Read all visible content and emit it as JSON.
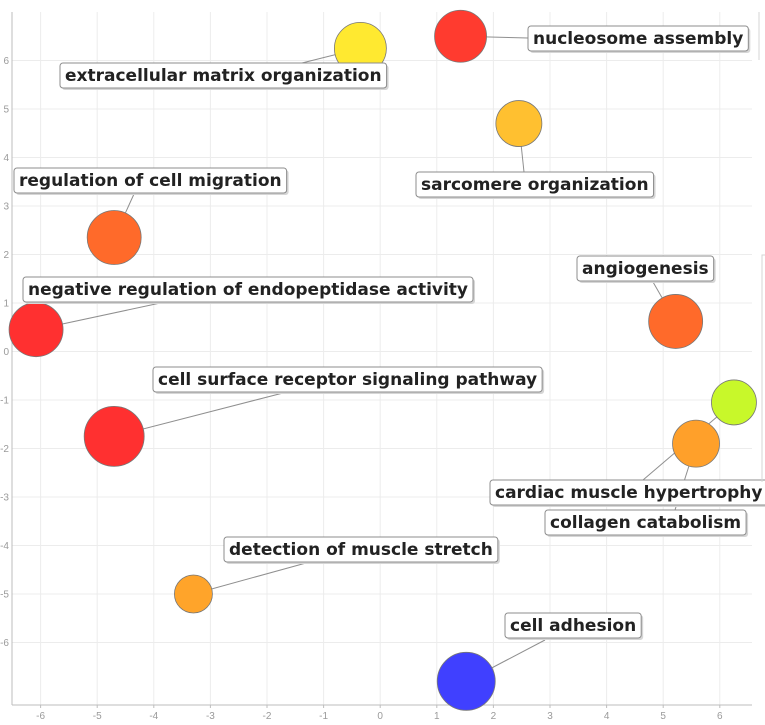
{
  "chart_data": {
    "type": "scatter",
    "title": "",
    "xlabel": "",
    "ylabel": "",
    "xlim": [
      -6.5,
      6.5
    ],
    "ylim": [
      -7.3,
      6.85
    ],
    "x_ticks": [
      -6,
      -5,
      -4,
      -3,
      -2,
      -1,
      0,
      1,
      2,
      3,
      4,
      5,
      6
    ],
    "y_ticks": [
      -6,
      -5,
      -4,
      -3,
      -2,
      -1,
      0,
      1,
      2,
      3,
      4,
      5,
      6
    ],
    "grid": true,
    "points": [
      {
        "label": "nucleosome assembly",
        "x": 1.42,
        "y": 6.5,
        "color": "#ff3b2f",
        "size": 52
      },
      {
        "label": "extracellular matrix organization",
        "x": -0.35,
        "y": 6.25,
        "color": "#ffe930",
        "size": 52
      },
      {
        "label": "sarcomere organization",
        "x": 2.45,
        "y": 4.7,
        "color": "#ffc030",
        "size": 46
      },
      {
        "label": "regulation of cell migration",
        "x": -4.7,
        "y": 2.35,
        "color": "#ff6a2a",
        "size": 54
      },
      {
        "label": "negative regulation of endopeptidase activity",
        "x": -6.08,
        "y": 0.45,
        "color": "#ff3030",
        "size": 54
      },
      {
        "label": "angiogenesis",
        "x": 5.22,
        "y": 0.62,
        "color": "#ff6a2a",
        "size": 54
      },
      {
        "label": "cell surface receptor signaling pathway",
        "x": -4.7,
        "y": -1.75,
        "color": "#ff3030",
        "size": 60
      },
      {
        "label": "cardiac muscle hypertrophy",
        "x": 6.25,
        "y": -1.05,
        "color": "#c8f82a",
        "size": 45
      },
      {
        "label": "collagen catabolism",
        "x": 5.58,
        "y": -1.9,
        "color": "#ffa02a",
        "size": 47
      },
      {
        "label": "detection of muscle stretch",
        "x": -3.3,
        "y": -5.0,
        "color": "#ffa42a",
        "size": 38
      },
      {
        "label": "cell adhesion",
        "x": 1.52,
        "y": -6.8,
        "color": "#4040ff",
        "size": 58
      }
    ]
  }
}
